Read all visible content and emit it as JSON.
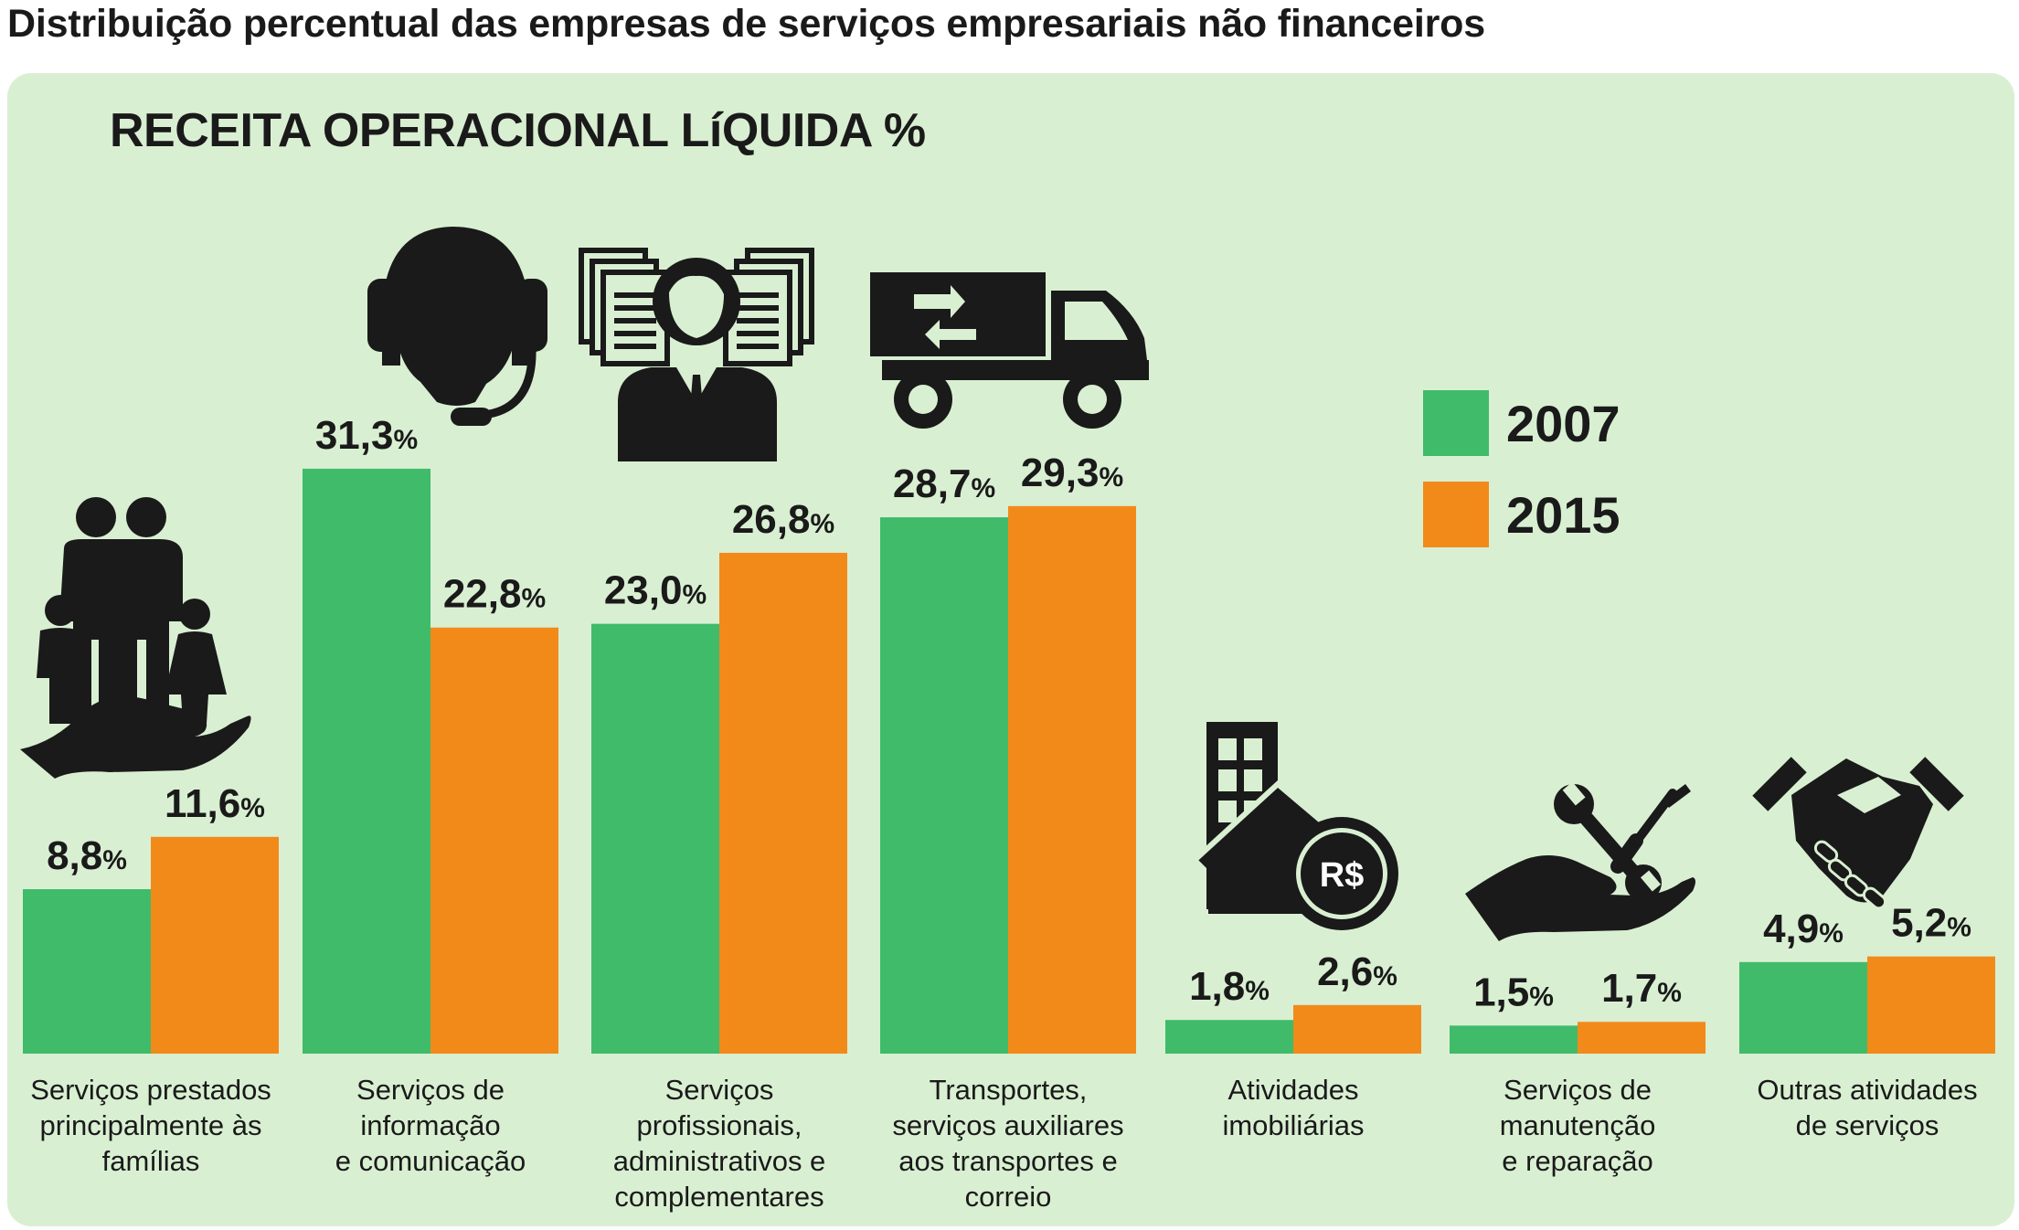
{
  "header": {
    "title": "Distribuição percentual das empresas de serviços empresariais não financeiros"
  },
  "chart_data": {
    "type": "bar",
    "title": "RECEITA OPERACIONAL LíQUIDA %",
    "xlabel": "",
    "ylabel": "",
    "ylim": [
      0,
      32
    ],
    "grid": false,
    "legend_position": "right",
    "categories": [
      [
        "Serviços prestados",
        "principalmente às",
        "famílias"
      ],
      [
        "Serviços de",
        "informação",
        "e comunicação"
      ],
      [
        "Serviços",
        "profissionais,",
        "administrativos e",
        "complementares"
      ],
      [
        "Transportes,",
        "serviços auxiliares",
        "aos transportes e",
        "correio"
      ],
      [
        "Atividades",
        "imobiliárias"
      ],
      [
        "Serviços de",
        "manutenção",
        "e reparação"
      ],
      [
        "Outras atividades",
        "de serviços"
      ]
    ],
    "series": [
      {
        "name": "2007",
        "color": "#3fbb6a",
        "values": [
          8.8,
          31.3,
          23.0,
          28.7,
          1.8,
          1.5,
          4.9
        ],
        "labels": [
          "8,8",
          "31,3",
          "23,0",
          "28,7",
          "1,8",
          "1,5",
          "4,9"
        ]
      },
      {
        "name": "2015",
        "color": "#f28a1a",
        "values": [
          11.6,
          22.8,
          26.8,
          29.3,
          2.6,
          1.7,
          5.2
        ],
        "labels": [
          "11,6",
          "22,8",
          "26,8",
          "29,3",
          "2,6",
          "1,7",
          "5,2"
        ]
      }
    ],
    "value_suffix": "%",
    "icons": [
      "family-in-hand-icon",
      "headset-icon",
      "businessperson-documents-icon",
      "truck-icon",
      "building-money-icon",
      "tools-in-hand-icon",
      "handshake-icon"
    ],
    "currency_symbol": "R$"
  }
}
